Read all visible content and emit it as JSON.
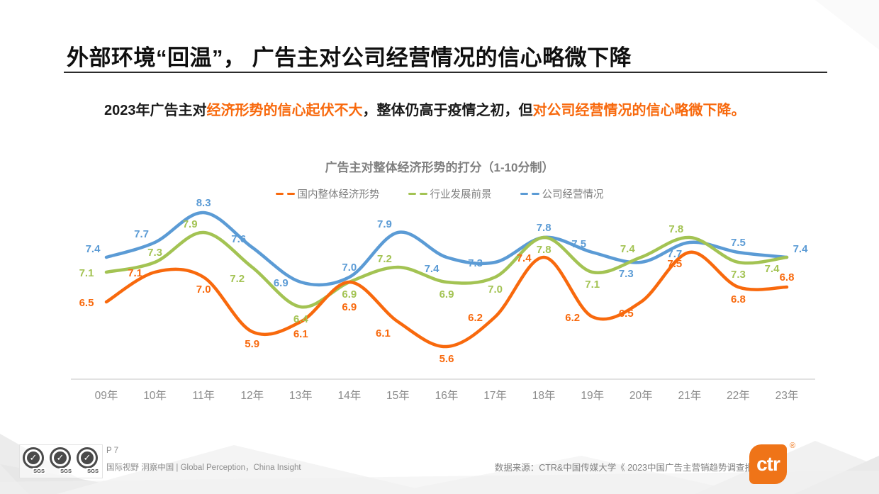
{
  "slide": {
    "title": "外部环境“回温”， 广告主对公司经营情况的信心略微下降",
    "subtitle_parts": [
      {
        "text": "2023年广告主对",
        "highlight": false
      },
      {
        "text": "经济形势的信心起伏不大",
        "highlight": true
      },
      {
        "text": "，整体仍高于疫情之初，但",
        "highlight": false
      },
      {
        "text": "对公司经营情况的信心略微下降。",
        "highlight": true
      }
    ],
    "page_label": "P 7",
    "footer_left": "国际视野 洞察中国 | Global Perception，China Insight",
    "data_source": "数据来源：CTR&中国传媒大学《 2023中国广告主营销趋势调查报告》",
    "sgs_label": "SGS",
    "sgs_check": "✓",
    "logo_text": "ctr",
    "logo_reg": "®",
    "accent_color": "#f8690d"
  },
  "chart_data": {
    "type": "line",
    "title": "广告主对整体经济形势的打分（1-10分制）",
    "categories": [
      "09年",
      "10年",
      "11年",
      "12年",
      "13年",
      "14年",
      "15年",
      "16年",
      "17年",
      "18年",
      "19年",
      "20年",
      "21年",
      "22年",
      "23年"
    ],
    "series": [
      {
        "name": "国内整体经济形势",
        "color": "#f8690d",
        "values": [
          6.5,
          7.1,
          7.0,
          5.9,
          6.1,
          6.9,
          6.1,
          5.6,
          6.2,
          7.4,
          6.2,
          6.5,
          7.5,
          6.8,
          6.8
        ],
        "label_pos": [
          "l",
          "l",
          "b",
          "b",
          "b",
          "bb",
          "bl",
          "b",
          "l",
          "l",
          "l",
          "bl",
          "bl",
          "b",
          "a"
        ]
      },
      {
        "name": "行业发展前景",
        "color": "#a3c353",
        "values": [
          7.1,
          7.3,
          7.9,
          7.2,
          6.4,
          6.9,
          7.2,
          6.9,
          7.0,
          7.8,
          7.1,
          7.4,
          7.8,
          7.3,
          7.4
        ],
        "label_pos": [
          "l",
          "a",
          "al",
          "bl",
          "b",
          "b",
          "al",
          "b",
          "b",
          "b",
          "b",
          "al",
          "al",
          "b",
          "bl"
        ]
      },
      {
        "name": "公司经营情况",
        "color": "#5b9bd5",
        "values": [
          7.4,
          7.7,
          8.3,
          7.6,
          6.9,
          7.0,
          7.9,
          7.4,
          7.3,
          7.8,
          7.5,
          7.3,
          7.7,
          7.5,
          7.4
        ],
        "label_pos": [
          "al",
          "al",
          "a",
          "al",
          "l",
          "a",
          "al",
          "bl",
          "l",
          "a",
          "al",
          "bl",
          "bl",
          "a",
          "ar"
        ]
      }
    ],
    "ylim": [
      5.0,
      8.6
    ],
    "grid": false,
    "legend_position": "top",
    "axis_line_color": "#d9d9d9",
    "tick_color": "#8c8c8c"
  }
}
